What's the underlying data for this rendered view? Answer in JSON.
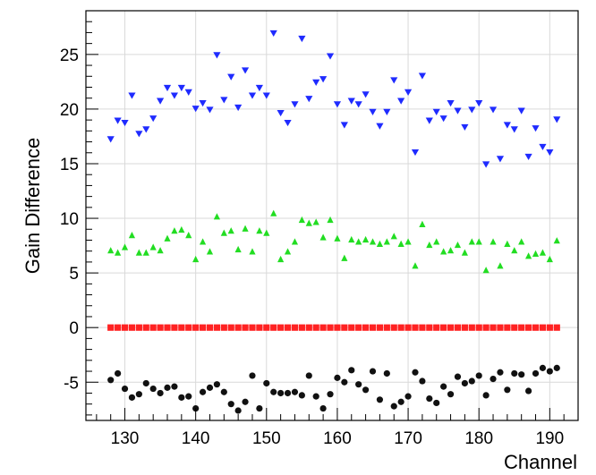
{
  "chart_data": {
    "type": "scatter",
    "xlabel": "Channel",
    "ylabel": "Gain Difference",
    "xlim": [
      124.5,
      194
    ],
    "ylim": [
      -8.5,
      29
    ],
    "xticks": [
      130,
      140,
      150,
      160,
      170,
      180,
      190
    ],
    "yticks": [
      -5,
      0,
      5,
      10,
      15,
      20,
      25
    ],
    "grid": true,
    "x": [
      128,
      129,
      130,
      131,
      132,
      133,
      134,
      135,
      136,
      137,
      138,
      139,
      140,
      141,
      142,
      143,
      144,
      145,
      146,
      147,
      148,
      149,
      150,
      151,
      152,
      153,
      154,
      155,
      156,
      157,
      158,
      159,
      160,
      161,
      162,
      163,
      164,
      165,
      166,
      167,
      168,
      169,
      170,
      171,
      172,
      173,
      174,
      175,
      176,
      177,
      178,
      179,
      180,
      181,
      182,
      183,
      184,
      185,
      186,
      187,
      188,
      189,
      190,
      191
    ],
    "series": [
      {
        "color": "#1f2bff",
        "marker": "triangle-down",
        "values": [
          17.3,
          19.0,
          18.8,
          21.3,
          17.8,
          18.2,
          19.2,
          20.8,
          22.0,
          21.3,
          22.0,
          21.6,
          20.1,
          20.6,
          20.0,
          25.0,
          20.9,
          23.0,
          20.2,
          23.6,
          21.3,
          22.0,
          21.3,
          27.0,
          19.7,
          18.8,
          20.5,
          26.5,
          21.0,
          22.5,
          22.8,
          24.9,
          20.5,
          18.6,
          20.8,
          20.5,
          21.4,
          19.8,
          18.5,
          19.8,
          22.7,
          20.8,
          21.6,
          16.1,
          23.1,
          19.0,
          19.8,
          19.2,
          20.6,
          19.9,
          18.4,
          20.0,
          20.6,
          15.0,
          20.0,
          15.5,
          18.6,
          18.2,
          19.9,
          15.7,
          18.3,
          16.6,
          16.1,
          19.1
        ]
      },
      {
        "color": "#22dd22",
        "marker": "triangle-up",
        "values": [
          7.0,
          6.8,
          7.3,
          8.4,
          6.8,
          6.8,
          7.3,
          7.0,
          8.1,
          8.8,
          8.9,
          8.4,
          6.2,
          7.8,
          6.9,
          10.1,
          8.6,
          8.8,
          7.1,
          9.0,
          6.9,
          8.8,
          8.6,
          10.4,
          6.2,
          6.9,
          7.8,
          9.8,
          9.5,
          9.6,
          8.2,
          9.8,
          8.1,
          6.3,
          8.0,
          7.8,
          8.0,
          7.8,
          7.6,
          7.8,
          8.3,
          7.6,
          7.8,
          5.6,
          9.4,
          7.5,
          7.8,
          6.9,
          7.0,
          7.5,
          6.8,
          7.8,
          7.8,
          5.2,
          7.8,
          5.6,
          7.6,
          7.0,
          7.8,
          6.5,
          6.7,
          6.8,
          6.2,
          7.9
        ]
      },
      {
        "color": "#ff2222",
        "marker": "square",
        "values": [
          0,
          0,
          0,
          0,
          0,
          0,
          0,
          0,
          0,
          0,
          0,
          0,
          0,
          0,
          0,
          0,
          0,
          0,
          0,
          0,
          0,
          0,
          0,
          0,
          0,
          0,
          0,
          0,
          0,
          0,
          0,
          0,
          0,
          0,
          0,
          0,
          0,
          0,
          0,
          0,
          0,
          0,
          0,
          0,
          0,
          0,
          0,
          0,
          0,
          0,
          0,
          0,
          0,
          0,
          0,
          0,
          0,
          0,
          0,
          0,
          0,
          0,
          0,
          0
        ]
      },
      {
        "color": "#111111",
        "marker": "circle",
        "values": [
          -4.8,
          -4.2,
          -5.6,
          -6.4,
          -6.1,
          -5.1,
          -5.6,
          -6.0,
          -5.5,
          -5.4,
          -6.4,
          -6.3,
          -7.4,
          -5.9,
          -5.5,
          -5.2,
          -5.9,
          -7.0,
          -7.6,
          -6.8,
          -4.4,
          -7.4,
          -5.1,
          -5.9,
          -6.0,
          -6.0,
          -5.9,
          -6.2,
          -4.4,
          -6.3,
          -7.4,
          -6.1,
          -4.6,
          -5.0,
          -3.9,
          -5.2,
          -5.7,
          -4.0,
          -6.6,
          -4.2,
          -7.2,
          -6.8,
          -6.3,
          -4.1,
          -4.9,
          -6.5,
          -6.9,
          -5.4,
          -6.1,
          -4.5,
          -5.1,
          -4.9,
          -4.4,
          -6.2,
          -4.7,
          -4.1,
          -5.7,
          -4.2,
          -4.3,
          -5.8,
          -4.2,
          -3.7,
          -4.0,
          -3.7
        ]
      }
    ]
  }
}
